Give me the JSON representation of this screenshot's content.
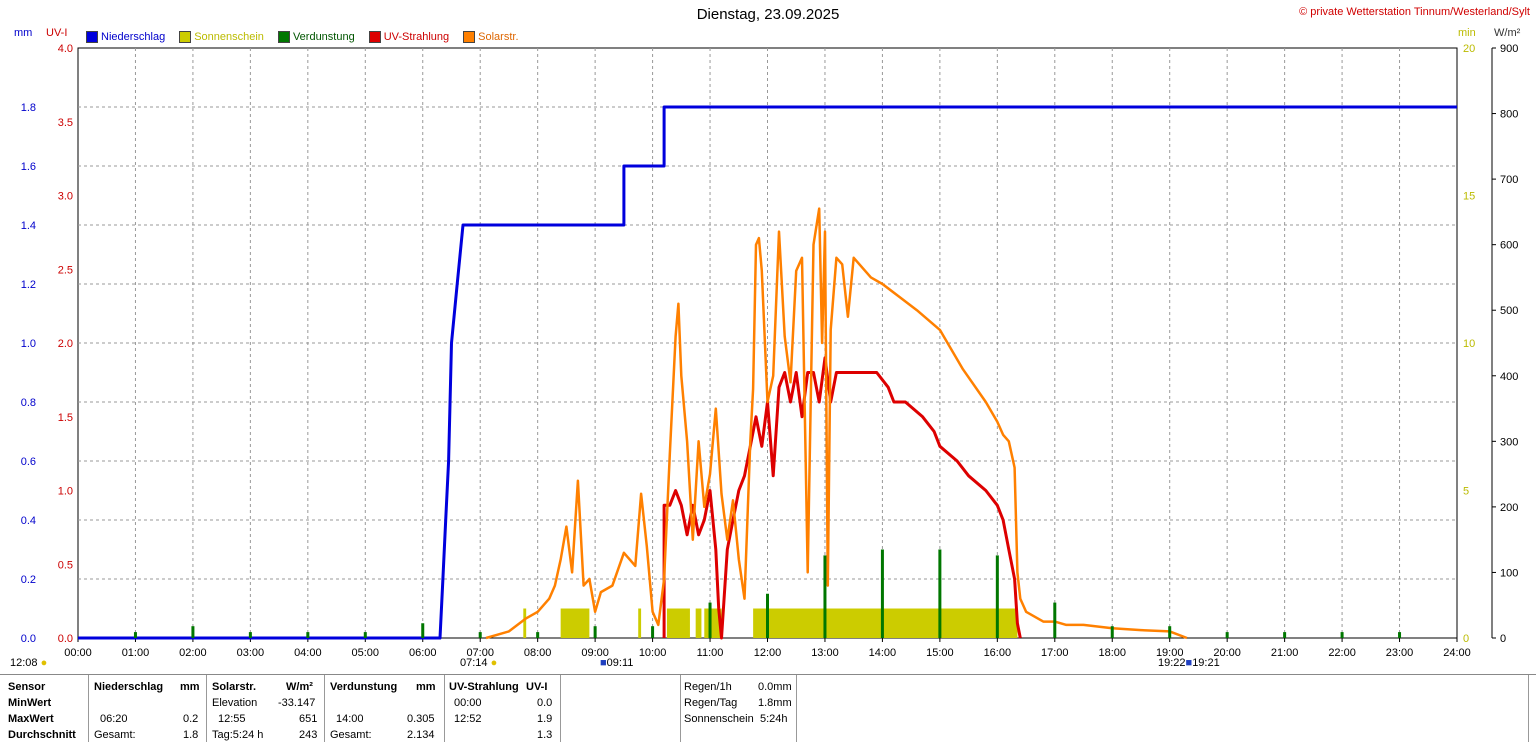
{
  "title": "Dienstag, 23.09.2025",
  "copyright": "© private Wetterstation Tinnum/Westerland/Sylt",
  "legend": [
    {
      "label": "Niederschlag",
      "color": "#0000dd",
      "text_color": "#0000cc"
    },
    {
      "label": "Sonnenschein",
      "color": "#cccc00",
      "text_color": "#bbbb00"
    },
    {
      "label": "Verdunstung",
      "color": "#007700",
      "text_color": "#005500"
    },
    {
      "label": "UV-Strahlung",
      "color": "#dd0000",
      "text_color": "#cc0000"
    },
    {
      "label": "Solarstr.",
      "color": "#ff8000",
      "text_color": "#dd6600"
    }
  ],
  "units": {
    "mm": "mm",
    "uv": "UV-I",
    "min": "min",
    "wm2": "W/m²"
  },
  "sun": {
    "left_time": "12:08",
    "sunrise": "07:14",
    "solar_noon_marker": "09:11",
    "sunset": "19:21",
    "sunset_alt": "19:22"
  },
  "chart_data": {
    "type": "line",
    "title": "Dienstag, 23.09.2025",
    "x_range": [
      "00:00",
      "24:00"
    ],
    "x_ticks": [
      "00:00",
      "01:00",
      "02:00",
      "03:00",
      "04:00",
      "05:00",
      "06:00",
      "07:00",
      "08:00",
      "09:00",
      "10:00",
      "11:00",
      "12:00",
      "13:00",
      "14:00",
      "15:00",
      "16:00",
      "17:00",
      "18:00",
      "19:00",
      "20:00",
      "21:00",
      "22:00",
      "23:00",
      "24:00"
    ],
    "axes": {
      "mm": {
        "range": [
          0,
          2.0
        ],
        "ticks": [
          "0.0",
          "0.2",
          "0.4",
          "0.6",
          "0.8",
          "1.0",
          "1.2",
          "1.4",
          "1.6",
          "1.8"
        ],
        "tick_values": [
          0,
          0.2,
          0.4,
          0.6,
          0.8,
          1.0,
          1.2,
          1.4,
          1.6,
          1.8
        ]
      },
      "uv": {
        "range": [
          0,
          4.0
        ],
        "ticks": [
          "0.0",
          "0.5",
          "1.0",
          "1.5",
          "2.0",
          "2.5",
          "3.0",
          "3.5",
          "4.0"
        ],
        "tick_values": [
          0,
          0.5,
          1.0,
          1.5,
          2.0,
          2.5,
          3.0,
          3.5,
          4.0
        ]
      },
      "min": {
        "range": [
          0,
          20
        ],
        "ticks": [
          "0",
          "5",
          "10",
          "15",
          "20"
        ],
        "tick_values": [
          0,
          5,
          10,
          15,
          20
        ]
      },
      "wm2": {
        "range": [
          0,
          900
        ],
        "ticks": [
          "0",
          "100",
          "200",
          "300",
          "400",
          "500",
          "600",
          "700",
          "800",
          "900"
        ],
        "tick_values": [
          0,
          100,
          200,
          300,
          400,
          500,
          600,
          700,
          800,
          900
        ]
      }
    },
    "grid": true,
    "series": [
      {
        "name": "Niederschlag",
        "axis": "mm",
        "color": "#0000dd",
        "style": "step",
        "x": [
          0,
          6.3,
          6.35,
          6.4,
          6.45,
          6.5,
          6.6,
          6.7,
          9.5,
          9.5,
          10.2,
          10.2,
          24
        ],
        "y": [
          0,
          0,
          0.2,
          0.4,
          0.6,
          1.0,
          1.2,
          1.4,
          1.4,
          1.6,
          1.6,
          1.8,
          1.8
        ]
      },
      {
        "name": "UV-Strahlung",
        "axis": "uv",
        "color": "#dd0000",
        "style": "line",
        "x": [
          10.2,
          10.2,
          10.3,
          10.4,
          10.5,
          10.6,
          10.7,
          10.8,
          10.9,
          11.0,
          11.1,
          11.15,
          11.2,
          11.3,
          11.4,
          11.5,
          11.6,
          11.7,
          11.8,
          11.9,
          12.0,
          12.1,
          12.2,
          12.3,
          12.4,
          12.5,
          12.6,
          12.7,
          12.8,
          12.9,
          13.0,
          13.1,
          13.2,
          13.3,
          13.5,
          13.7,
          13.9,
          14.1,
          14.2,
          14.4,
          14.7,
          14.9,
          15.0,
          15.3,
          15.5,
          15.8,
          16.0,
          16.1,
          16.2,
          16.3,
          16.35,
          16.4
        ],
        "y": [
          0,
          0.9,
          0.9,
          1.0,
          0.9,
          0.7,
          0.9,
          0.7,
          0.8,
          1.0,
          0.6,
          0.2,
          0.0,
          0.6,
          0.8,
          1.0,
          1.1,
          1.3,
          1.5,
          1.3,
          1.6,
          1.1,
          1.7,
          1.8,
          1.6,
          1.8,
          1.5,
          1.8,
          1.8,
          1.6,
          1.9,
          1.6,
          1.8,
          1.8,
          1.8,
          1.8,
          1.8,
          1.7,
          1.6,
          1.6,
          1.5,
          1.4,
          1.3,
          1.2,
          1.1,
          1.0,
          0.9,
          0.8,
          0.6,
          0.4,
          0.1,
          0.0
        ]
      },
      {
        "name": "Solarstr.",
        "axis": "wm2",
        "color": "#ff8000",
        "style": "line",
        "x": [
          7.1,
          7.5,
          7.8,
          8.0,
          8.2,
          8.3,
          8.4,
          8.5,
          8.6,
          8.7,
          8.8,
          8.9,
          9.0,
          9.1,
          9.3,
          9.5,
          9.7,
          9.8,
          9.9,
          10.0,
          10.1,
          10.2,
          10.3,
          10.4,
          10.45,
          10.5,
          10.6,
          10.7,
          10.8,
          10.9,
          11.0,
          11.1,
          11.2,
          11.3,
          11.4,
          11.5,
          11.6,
          11.7,
          11.75,
          11.8,
          11.85,
          11.9,
          12.0,
          12.1,
          12.2,
          12.3,
          12.4,
          12.5,
          12.6,
          12.7,
          12.8,
          12.9,
          12.95,
          13.0,
          13.05,
          13.1,
          13.2,
          13.3,
          13.4,
          13.5,
          13.6,
          13.8,
          14.0,
          14.3,
          14.6,
          15.0,
          15.4,
          15.8,
          16.0,
          16.1,
          16.2,
          16.3,
          16.35,
          16.4,
          16.5,
          16.8,
          17.0,
          17.2,
          17.5,
          18.0,
          18.5,
          19.0,
          19.3
        ],
        "y": [
          0,
          10,
          30,
          40,
          60,
          80,
          120,
          170,
          100,
          240,
          80,
          90,
          40,
          70,
          80,
          130,
          110,
          220,
          140,
          40,
          20,
          90,
          280,
          460,
          510,
          400,
          300,
          150,
          300,
          200,
          250,
          350,
          220,
          150,
          210,
          120,
          60,
          300,
          380,
          600,
          610,
          560,
          360,
          400,
          620,
          460,
          390,
          560,
          580,
          100,
          600,
          655,
          450,
          620,
          80,
          470,
          580,
          570,
          490,
          580,
          570,
          550,
          540,
          520,
          500,
          470,
          410,
          360,
          330,
          310,
          300,
          260,
          100,
          60,
          40,
          25,
          25,
          20,
          20,
          15,
          12,
          10,
          0
        ]
      },
      {
        "name": "Verdunstung",
        "axis": "min",
        "color": "#007700",
        "style": "bars",
        "x": [
          1,
          2,
          3,
          4,
          5,
          6,
          7,
          8,
          9,
          10,
          11,
          12,
          13,
          14,
          15,
          16,
          17,
          18,
          19,
          20,
          21,
          22,
          23
        ],
        "y": [
          0.2,
          0.4,
          0.2,
          0.2,
          0.2,
          0.5,
          0.2,
          0.2,
          0.4,
          0.4,
          1.2,
          1.5,
          2.8,
          3.0,
          3.0,
          2.8,
          1.2,
          0.4,
          0.4,
          0.2,
          0.2,
          0.2,
          0.2
        ]
      }
    ],
    "sunshine_blocks": [
      {
        "start": 7.75,
        "end": 7.8
      },
      {
        "start": 8.4,
        "end": 8.9
      },
      {
        "start": 9.75,
        "end": 9.8
      },
      {
        "start": 10.25,
        "end": 10.65
      },
      {
        "start": 10.75,
        "end": 10.85
      },
      {
        "start": 10.9,
        "end": 11.2
      },
      {
        "start": 11.75,
        "end": 16.35
      }
    ]
  },
  "table": {
    "headers": {
      "sensor": "Sensor",
      "ns": "Niederschlag",
      "ns_unit": "mm",
      "solar": "Solarstr.",
      "solar_unit": "W/m²",
      "verd": "Verdunstung",
      "verd_unit": "mm",
      "uv": "UV-Strahlung",
      "uv_unit": "UV-I"
    },
    "rows": [
      {
        "label": "MinWert",
        "ns_time": "",
        "ns_val": "",
        "solar_time": "Elevation",
        "solar_val": "-33.147",
        "verd_time": "",
        "verd_val": "",
        "uv_time": "00:00",
        "uv_val": "0.0"
      },
      {
        "label": "MaxWert",
        "ns_time": "06:20",
        "ns_val": "0.2",
        "solar_time": "12:55",
        "solar_val": "651",
        "verd_time": "14:00",
        "verd_val": "0.305",
        "uv_time": "12:52",
        "uv_val": "1.9"
      },
      {
        "label": "Durchschnitt",
        "ns_time": "Gesamt:",
        "ns_val": "1.8",
        "solar_time": "Tag:5:24 h",
        "solar_val": "243",
        "verd_time": "Gesamt:",
        "verd_val": "2.134",
        "uv_time": "",
        "uv_val": "1.3"
      }
    ],
    "rain": [
      {
        "label": "Regen/1h",
        "value": "0.0mm"
      },
      {
        "label": "Regen/Tag",
        "value": "1.8mm"
      },
      {
        "label": "Sonnenschein",
        "value": "5:24h"
      }
    ]
  }
}
